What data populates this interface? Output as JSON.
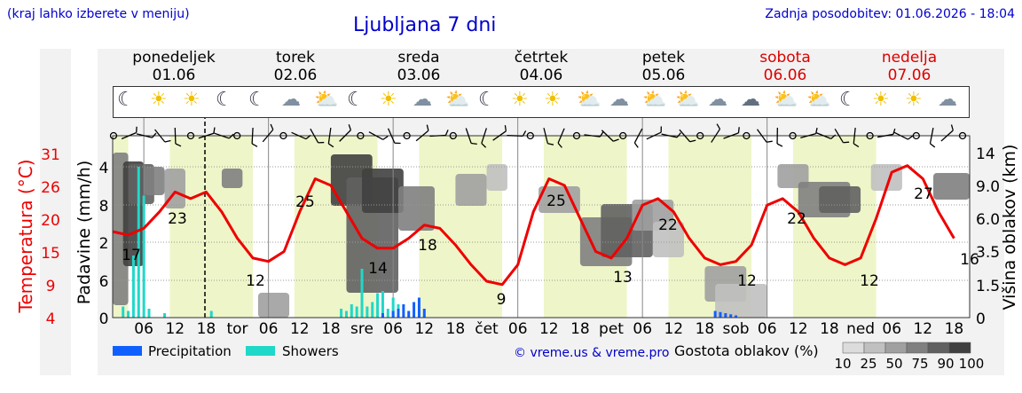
{
  "header": {
    "hint": "(kraj lahko izberete v meniju)",
    "title": "Ljubljana 7 dni",
    "updated": "Zadnja posodobitev: 01.06.2026 - 18:04"
  },
  "days": [
    {
      "name": "ponedeljek",
      "date": "01.06",
      "weekend": false
    },
    {
      "name": "torek",
      "date": "02.06",
      "weekend": false
    },
    {
      "name": "sreda",
      "date": "03.06",
      "weekend": false
    },
    {
      "name": "četrtek",
      "date": "04.06",
      "weekend": false
    },
    {
      "name": "petek",
      "date": "05.06",
      "weekend": false
    },
    {
      "name": "sobota",
      "date": "06.06",
      "weekend": true
    },
    {
      "name": "nedelja",
      "date": "07.06",
      "weekend": true
    }
  ],
  "weather_icons": [
    "moon-lightning",
    "sun-lightning",
    "sun-lightning",
    "moon-cloud",
    "moon-cloud",
    "cloud",
    "sun-cloud",
    "moon-lightning",
    "sun-lightning",
    "cloud",
    "sun-cloud",
    "moon-fog",
    "sun",
    "sun",
    "sun-cloud",
    "fog-cloud",
    "sun-cloud",
    "sun-cloud",
    "fog-cloud",
    "rain-cloud",
    "sun-cloud",
    "sun-cloud",
    "moon-fog",
    "sun",
    "sun",
    "cloud"
  ],
  "legend": {
    "precip": "Precipitation",
    "showers": "Showers",
    "credit": "© vreme.us & vreme.pro",
    "density_title": "Gostota oblakov (%)",
    "density_ticks": [
      "10",
      "25",
      "50",
      "75",
      "90",
      "100"
    ],
    "density_colors": [
      "#dcdcdc",
      "#c0c0c0",
      "#a0a0a0",
      "#808080",
      "#606060",
      "#404040"
    ]
  },
  "colors": {
    "temp": "#ee0000",
    "precip": "#1060ff",
    "showers": "#20d8c8",
    "weekday_bg": "#eef5c8",
    "night_bg": "#ffffff"
  },
  "chart_data": {
    "type": "line",
    "x_ticks": [
      "06",
      "12",
      "18",
      "tor",
      "06",
      "12",
      "18",
      "sre",
      "06",
      "12",
      "18",
      "čet",
      "06",
      "12",
      "18",
      "pet",
      "06",
      "12",
      "18",
      "sob",
      "06",
      "12",
      "18",
      "ned",
      "06",
      "12",
      "18"
    ],
    "temperature": {
      "label": "Temperatura (°C)",
      "ticks": [
        "4",
        "9",
        "15",
        "20",
        "26",
        "31"
      ],
      "x_hours": [
        0,
        3,
        6,
        9,
        12,
        15,
        18,
        21,
        24,
        27,
        30,
        33,
        36,
        39,
        42,
        45,
        48,
        51,
        54,
        57,
        60,
        63,
        66,
        69,
        72,
        75,
        78,
        81,
        84,
        87,
        90,
        93,
        96,
        99,
        102,
        105,
        108,
        111,
        114,
        117,
        120,
        123,
        126,
        129,
        132,
        135,
        138,
        141,
        144,
        147,
        150,
        153,
        156,
        159,
        162
      ],
      "values": [
        17,
        16.5,
        17.5,
        20,
        23,
        22,
        23,
        20,
        16,
        13,
        12.5,
        14,
        20,
        25,
        24,
        20,
        16,
        14.5,
        14.5,
        16,
        18,
        17.5,
        15,
        12,
        9.5,
        9,
        12,
        20,
        25,
        24,
        19,
        14,
        13,
        16,
        21,
        22,
        20,
        16,
        13,
        12,
        12.5,
        15,
        21,
        22,
        20,
        16,
        13,
        12,
        13,
        19,
        26,
        27,
        25,
        20,
        16
      ]
    },
    "precipitation": {
      "label": "Padavine (mm/h)",
      "ticks": [
        "0",
        "6",
        "2",
        "8",
        "4"
      ],
      "precip_bars": [
        {
          "hour": 52,
          "value": 0.2
        },
        {
          "hour": 54,
          "value": 0.3
        },
        {
          "hour": 55,
          "value": 0.4
        },
        {
          "hour": 56,
          "value": 0.6
        },
        {
          "hour": 57,
          "value": 0.3
        },
        {
          "hour": 58,
          "value": 0.7
        },
        {
          "hour": 59,
          "value": 0.9
        },
        {
          "hour": 60,
          "value": 0.4
        },
        {
          "hour": 116,
          "value": 0.3
        },
        {
          "hour": 117,
          "value": 0.25
        },
        {
          "hour": 118,
          "value": 0.2
        },
        {
          "hour": 119,
          "value": 0.15
        },
        {
          "hour": 120,
          "value": 0.1
        }
      ],
      "shower_bars": [
        {
          "hour": 2,
          "value": 0.5
        },
        {
          "hour": 3,
          "value": 0.3
        },
        {
          "hour": 4,
          "value": 2.8
        },
        {
          "hour": 5,
          "value": 6.8
        },
        {
          "hour": 6,
          "value": 5.5
        },
        {
          "hour": 7,
          "value": 0.4
        },
        {
          "hour": 10,
          "value": 0.2
        },
        {
          "hour": 19,
          "value": 0.3
        },
        {
          "hour": 44,
          "value": 0.4
        },
        {
          "hour": 45,
          "value": 0.3
        },
        {
          "hour": 46,
          "value": 0.6
        },
        {
          "hour": 47,
          "value": 0.5
        },
        {
          "hour": 48,
          "value": 2.2
        },
        {
          "hour": 49,
          "value": 0.5
        },
        {
          "hour": 50,
          "value": 0.7
        },
        {
          "hour": 51,
          "value": 1.1
        },
        {
          "hour": 52,
          "value": 1.2
        },
        {
          "hour": 53,
          "value": 0.4
        },
        {
          "hour": 54,
          "value": 0.9
        },
        {
          "hour": 55,
          "value": 0.6
        }
      ]
    },
    "cloud_height": {
      "label": "Višina oblakov (km)",
      "ticks": [
        "0",
        "1.5",
        "3.5",
        "6.0",
        "9.0",
        "14"
      ]
    },
    "temp_labels": [
      {
        "hour": 1,
        "value": "17"
      },
      {
        "hour": 6,
        "value": "23"
      },
      {
        "hour": 12,
        "value": "25"
      },
      {
        "hour": 13,
        "value": "12"
      },
      {
        "hour": 22,
        "value": "14"
      },
      {
        "hour": 26,
        "value": "18"
      },
      {
        "hour": 37,
        "value": "9"
      },
      {
        "hour": 42,
        "value": "25"
      },
      {
        "hour": 49,
        "value": "13"
      },
      {
        "hour": 53,
        "value": "22"
      },
      {
        "hour": 60,
        "value": "12"
      },
      {
        "hour": 64,
        "value": "22"
      },
      {
        "hour": 72,
        "value": "12"
      },
      {
        "hour": 77,
        "value": "27"
      },
      {
        "hour": 83,
        "value": "16"
      }
    ]
  }
}
